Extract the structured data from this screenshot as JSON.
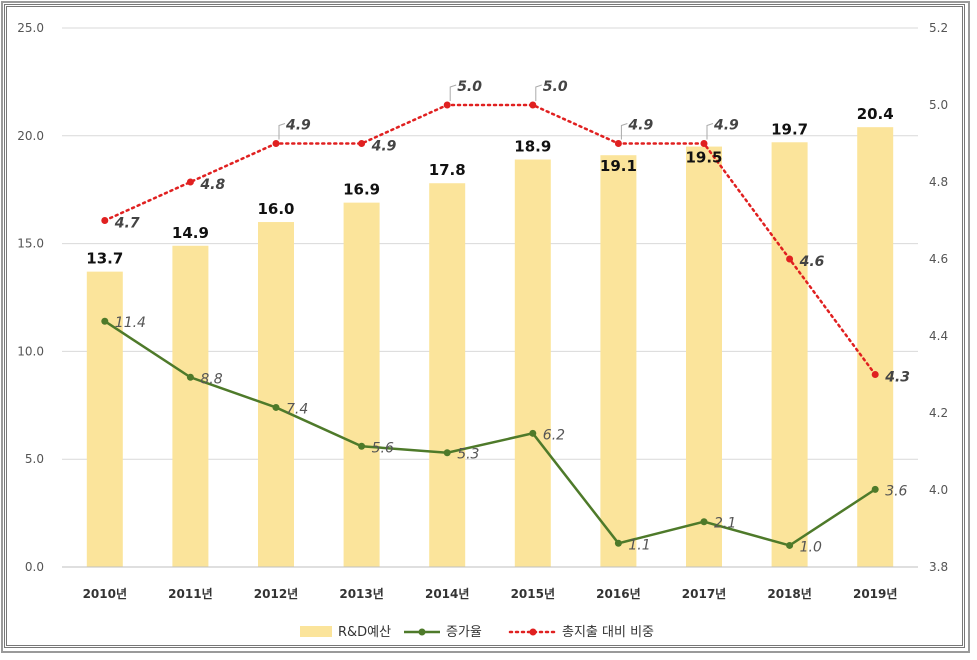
{
  "chart_data": {
    "type": "bar",
    "categories": [
      "2010년",
      "2011년",
      "2012년",
      "2013년",
      "2014년",
      "2015년",
      "2016년",
      "2017년",
      "2018년",
      "2019년"
    ],
    "series": [
      {
        "name": "R&D예산",
        "type": "bar",
        "axis": "left",
        "color": "#FBE49B",
        "values": [
          13.7,
          14.9,
          16.0,
          16.9,
          17.8,
          18.9,
          19.1,
          19.5,
          19.7,
          20.4
        ],
        "labels": [
          "13.7",
          "14.9",
          "16.0",
          "16.9",
          "17.8",
          "18.9",
          "19.1",
          "19.5",
          "19.7",
          "20.4"
        ]
      },
      {
        "name": "증가율",
        "type": "line",
        "axis": "left",
        "color": "#4E7A2A",
        "values": [
          11.4,
          8.8,
          7.4,
          5.6,
          5.3,
          6.2,
          1.1,
          2.1,
          1.0,
          3.6
        ],
        "labels": [
          "11.4",
          "8.8",
          "7.4",
          "5.6",
          "5.3",
          "6.2",
          "1.1",
          "2.1",
          "1.0",
          "3.6"
        ]
      },
      {
        "name": "총지출 대비 비중",
        "type": "line",
        "axis": "right",
        "color": "#E02020",
        "dashed": true,
        "values": [
          4.7,
          4.8,
          4.9,
          4.9,
          5.0,
          5.0,
          4.9,
          4.9,
          4.6,
          4.3
        ],
        "labels": [
          "4.7",
          "4.8",
          "4.9",
          "4.9",
          "5.0",
          "5.0",
          "4.9",
          "4.9",
          "4.6",
          "4.3"
        ]
      }
    ],
    "y_left": {
      "range": [
        0,
        25
      ],
      "ticks": [
        "0.0",
        "5.0",
        "10.0",
        "15.0",
        "20.0",
        "25.0"
      ]
    },
    "y_right": {
      "range": [
        3.8,
        5.2
      ],
      "ticks": [
        "3.8",
        "4.0",
        "4.2",
        "4.4",
        "4.6",
        "4.8",
        "5.0",
        "5.2"
      ]
    },
    "grid": "horizontal",
    "legend_position": "bottom"
  }
}
